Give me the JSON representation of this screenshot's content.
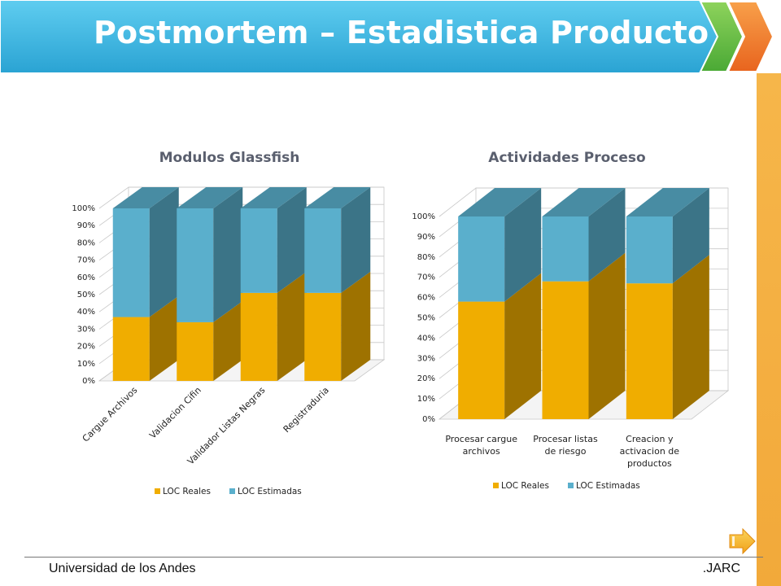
{
  "slide": {
    "title": "Postmortem – Estadistica Producto",
    "footer_left": "Universidad de los Andes",
    "footer_right": ".JARC"
  },
  "colors": {
    "banner": "#3fb8e0",
    "accent_green": "#6cc24a",
    "accent_orange": "#f07a2a",
    "side_bar": "#f4b040",
    "series_reales": "#f0ad00",
    "series_estimadas": "#5aafcc"
  },
  "icons": {
    "next": "arrow-right-icon"
  },
  "chart_data": [
    {
      "type": "bar",
      "stacked": true,
      "percent": true,
      "three_d": true,
      "title": "Modulos Glassfish",
      "categories": [
        "Cargue Archivos",
        "Validacion Cifin",
        "Validador Listas Negras",
        "Registraduria"
      ],
      "series": [
        {
          "name": "LOC Reales",
          "values": [
            37,
            34,
            51,
            51
          ]
        },
        {
          "name": "LOC Estimadas",
          "values": [
            63,
            66,
            49,
            49
          ]
        }
      ],
      "yticks": [
        "0%",
        "10%",
        "20%",
        "30%",
        "40%",
        "50%",
        "60%",
        "70%",
        "80%",
        "90%",
        "100%"
      ],
      "ylim": [
        0,
        100
      ],
      "grid": true,
      "legend": "bottom"
    },
    {
      "type": "bar",
      "stacked": true,
      "percent": true,
      "three_d": true,
      "title": "Actividades Proceso",
      "categories": [
        "Procesar cargue archivos",
        "Procesar listas de riesgo",
        "Creacion y activacion de productos"
      ],
      "series": [
        {
          "name": "LOC Reales",
          "values": [
            58,
            68,
            67
          ]
        },
        {
          "name": "LOC Estimadas",
          "values": [
            42,
            32,
            33
          ]
        }
      ],
      "yticks": [
        "0%",
        "10%",
        "20%",
        "30%",
        "40%",
        "50%",
        "60%",
        "70%",
        "80%",
        "90%",
        "100%"
      ],
      "ylim": [
        0,
        100
      ],
      "grid": true,
      "legend": "bottom"
    }
  ]
}
